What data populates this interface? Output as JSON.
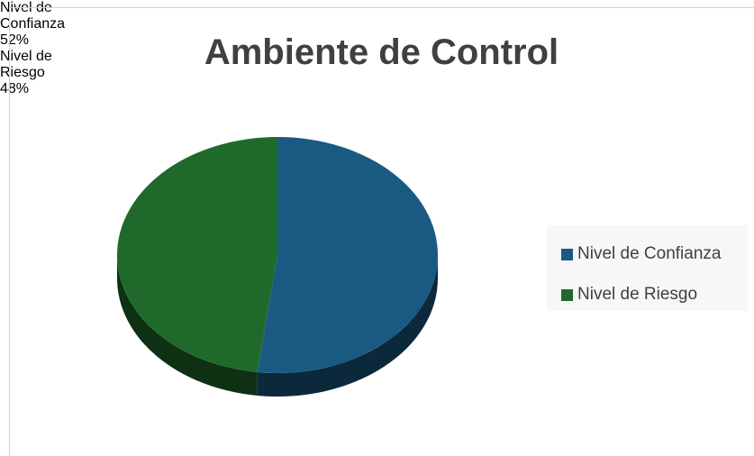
{
  "chart_data": {
    "type": "pie",
    "title": "Ambiente de Control",
    "categories": [
      "Nivel de Confianza",
      "Nivel de Riesgo"
    ],
    "values": [
      52,
      48
    ],
    "value_labels": [
      "52%",
      "48%"
    ],
    "colors": [
      "#1a5a82",
      "#1f6a2b"
    ],
    "legend": "right"
  }
}
